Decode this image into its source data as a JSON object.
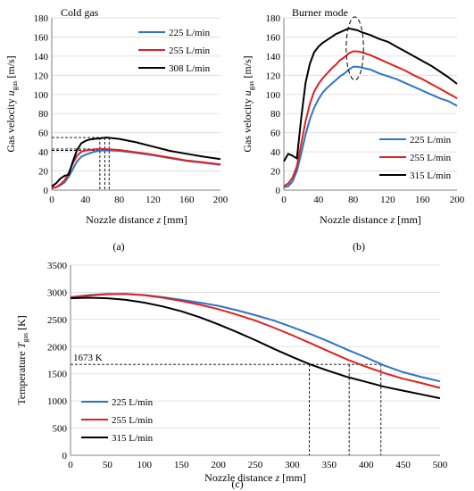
{
  "captions": [
    "(a)",
    "(b)",
    "(c)"
  ],
  "chart_data": [
    {
      "type": "line",
      "title": "Cold gas",
      "xlabel": "Nozzle distance z [mm]",
      "ylabel": "Gas velocity u_gas [m/s]",
      "xlabel_text": "Nozzle distance",
      "xlabel_var": "z",
      "xlabel_unit": "[mm]",
      "ylabel_text": "Gas velocity",
      "ylabel_var": "u",
      "ylabel_sub": "gas",
      "ylabel_unit": "[m/s]",
      "xlim": [
        0,
        200
      ],
      "ylim": [
        0,
        180
      ],
      "xticks": [
        "0",
        "40",
        "80",
        "120",
        "160",
        "200"
      ],
      "yticks": [
        "0",
        "20",
        "40",
        "60",
        "80",
        "100",
        "120",
        "140",
        "160",
        "180"
      ],
      "legend_position": "top-right",
      "series": [
        {
          "name": "225 L/min",
          "color": "#2e74c8",
          "x": [
            0,
            5,
            10,
            15,
            20,
            25,
            30,
            35,
            40,
            45,
            50,
            55,
            60,
            70,
            80,
            100,
            120,
            140,
            160,
            180,
            200
          ],
          "y": [
            3,
            3,
            5,
            8,
            14,
            22,
            30,
            35,
            37,
            38.5,
            40,
            41,
            41.5,
            41.5,
            41,
            39,
            36.5,
            33.5,
            30.5,
            28.5,
            26.5
          ]
        },
        {
          "name": "255 L/min",
          "color": "#e02020",
          "x": [
            0,
            5,
            10,
            15,
            20,
            25,
            30,
            35,
            40,
            45,
            50,
            55,
            60,
            70,
            80,
            100,
            120,
            140,
            160,
            180,
            200
          ],
          "y": [
            2,
            3,
            6,
            10,
            18,
            28,
            36,
            40,
            41.5,
            42,
            42.5,
            43,
            43,
            42.5,
            42,
            39.5,
            37,
            34,
            31,
            29,
            27
          ]
        },
        {
          "name": "308 L/min",
          "color": "#000000",
          "x": [
            0,
            5,
            10,
            15,
            20,
            25,
            30,
            35,
            40,
            45,
            50,
            55,
            60,
            65,
            70,
            80,
            100,
            120,
            140,
            160,
            180,
            200
          ],
          "y": [
            4,
            7,
            12,
            15,
            16,
            30,
            42,
            49,
            51.5,
            53,
            53.5,
            54,
            54.5,
            55,
            54.5,
            53.5,
            50,
            45.5,
            41,
            38,
            35,
            32.5
          ]
        }
      ],
      "guides": {
        "hlines": [
          55,
          43,
          41.5
        ],
        "vlines": [
          57,
          63,
          68
        ]
      }
    },
    {
      "type": "line",
      "title": "Burner mode",
      "xlabel": "Nozzle distance z [mm]",
      "ylabel": "Gas velocity u_gas [m/s]",
      "xlabel_text": "Nozzle distance",
      "xlabel_var": "z",
      "xlabel_unit": "[mm]",
      "ylabel_text": "Gas velocity",
      "ylabel_var": "u",
      "ylabel_sub": "gas",
      "ylabel_unit": "[m/s]",
      "xlim": [
        0,
        200
      ],
      "ylim": [
        0,
        180
      ],
      "xticks": [
        "0",
        "40",
        "80",
        "120",
        "160",
        "200"
      ],
      "yticks": [
        "0",
        "20",
        "40",
        "60",
        "80",
        "100",
        "120",
        "140",
        "160",
        "180"
      ],
      "legend_position": "bottom-right",
      "series": [
        {
          "name": "225 L/min",
          "color": "#2e74c8",
          "x": [
            0,
            5,
            10,
            15,
            20,
            25,
            30,
            35,
            40,
            45,
            50,
            55,
            60,
            65,
            70,
            75,
            80,
            85,
            90,
            100,
            110,
            120,
            130,
            140,
            150,
            160,
            170,
            180,
            190,
            200
          ],
          "y": [
            3,
            4,
            9,
            20,
            38,
            58,
            74,
            86,
            95,
            102,
            107,
            111,
            115,
            119,
            122,
            126,
            129,
            129,
            128,
            126,
            122,
            119,
            116,
            112,
            108,
            104,
            100,
            96,
            93,
            88
          ]
        },
        {
          "name": "255 L/min",
          "color": "#e02020",
          "x": [
            0,
            5,
            10,
            15,
            20,
            25,
            30,
            35,
            40,
            45,
            50,
            55,
            60,
            65,
            70,
            75,
            80,
            85,
            90,
            100,
            110,
            120,
            130,
            140,
            150,
            160,
            170,
            180,
            190,
            200
          ],
          "y": [
            4,
            7,
            13,
            25,
            48,
            72,
            90,
            103,
            111,
            117,
            122,
            127,
            131,
            136,
            139,
            143,
            145,
            145,
            144,
            141,
            137,
            133,
            129,
            125,
            120,
            116,
            111,
            106,
            101,
            96
          ]
        },
        {
          "name": "315 L/min",
          "color": "#000000",
          "x": [
            0,
            5,
            10,
            15,
            20,
            25,
            30,
            35,
            40,
            45,
            50,
            55,
            60,
            65,
            70,
            75,
            80,
            85,
            90,
            100,
            110,
            120,
            130,
            140,
            150,
            160,
            170,
            180,
            190,
            200
          ],
          "y": [
            30,
            38,
            36,
            33,
            75,
            112,
            132,
            144,
            150,
            154,
            157,
            160,
            163,
            165,
            167,
            169,
            168,
            167,
            165,
            162,
            158,
            155,
            150,
            145,
            140,
            135,
            130,
            124,
            118,
            111
          ]
        }
      ],
      "ellipse": {
        "cx": 82,
        "cy": 148,
        "rx": 10,
        "ry": 33
      }
    },
    {
      "type": "line",
      "title": "",
      "xlabel": "Nozzle distance z [mm]",
      "ylabel": "Temperature T_gas [K]",
      "xlabel_text": "Nozzle distance",
      "xlabel_var": "z",
      "xlabel_unit": "[mm]",
      "ylabel_text": "Temperature",
      "ylabel_var": "T",
      "ylabel_sub": "gas",
      "ylabel_unit": "[K]",
      "xlim": [
        0,
        500
      ],
      "ylim": [
        0,
        3500
      ],
      "xticks": [
        "0",
        "50",
        "100",
        "150",
        "200",
        "250",
        "300",
        "350",
        "400",
        "450",
        "500"
      ],
      "yticks": [
        "0",
        "500",
        "1000",
        "1500",
        "2000",
        "2500",
        "3000",
        "3500"
      ],
      "legend_position": "bottom-left",
      "annotation": "1673 K",
      "series": [
        {
          "name": "225 L/min",
          "color": "#2e74c8",
          "x": [
            0,
            25,
            50,
            75,
            100,
            125,
            150,
            175,
            200,
            225,
            250,
            275,
            300,
            325,
            350,
            375,
            400,
            425,
            450,
            475,
            500
          ],
          "y": [
            2910,
            2950,
            2970,
            2970,
            2950,
            2910,
            2860,
            2810,
            2750,
            2670,
            2580,
            2480,
            2360,
            2230,
            2090,
            1940,
            1800,
            1650,
            1530,
            1440,
            1360
          ]
        },
        {
          "name": "255 L/min",
          "color": "#e02020",
          "x": [
            0,
            25,
            50,
            75,
            100,
            125,
            150,
            175,
            200,
            225,
            250,
            275,
            300,
            325,
            350,
            375,
            400,
            425,
            450,
            475,
            500
          ],
          "y": [
            2900,
            2940,
            2965,
            2970,
            2945,
            2900,
            2840,
            2770,
            2690,
            2590,
            2480,
            2350,
            2210,
            2060,
            1910,
            1760,
            1630,
            1510,
            1410,
            1330,
            1240
          ]
        },
        {
          "name": "315 L/min",
          "color": "#000000",
          "x": [
            0,
            25,
            50,
            75,
            100,
            125,
            150,
            175,
            200,
            225,
            250,
            275,
            300,
            325,
            350,
            375,
            400,
            425,
            450,
            475,
            500
          ],
          "y": [
            2890,
            2900,
            2890,
            2860,
            2810,
            2740,
            2650,
            2540,
            2410,
            2270,
            2120,
            1960,
            1810,
            1670,
            1550,
            1440,
            1350,
            1260,
            1190,
            1120,
            1050
          ]
        }
      ],
      "guides": {
        "hlines": [
          1673
        ],
        "vlines": [
          323,
          377,
          420
        ]
      }
    }
  ]
}
